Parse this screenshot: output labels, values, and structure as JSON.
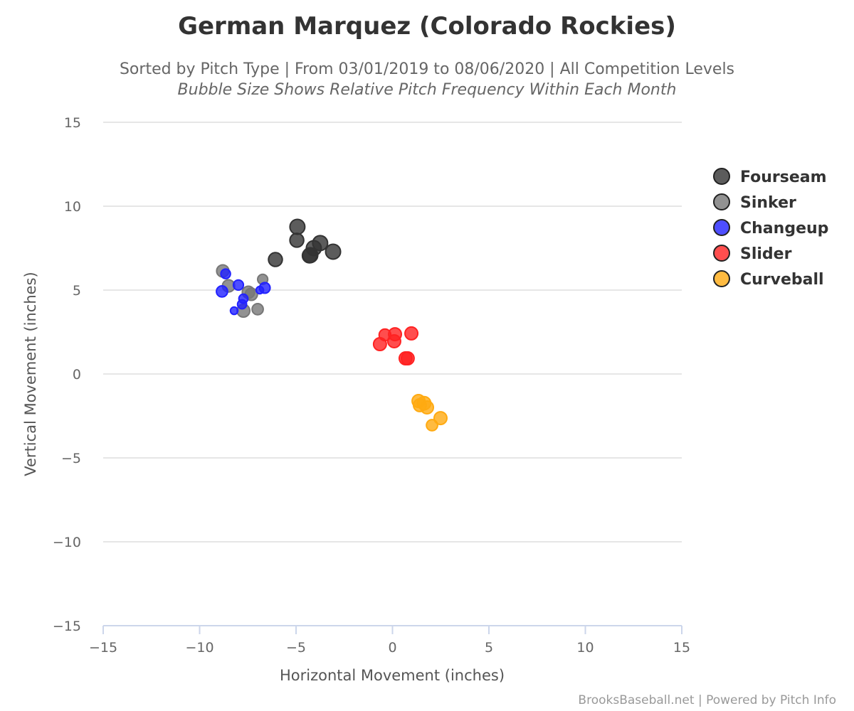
{
  "chart_data": {
    "type": "scatter",
    "title": "German Marquez (Colorado Rockies)",
    "subtitle": "Sorted by Pitch Type | From 03/01/2019 to 08/06/2020 | All Competition Levels",
    "subtitle2": "Bubble Size Shows Relative Pitch Frequency Within Each Month",
    "xlabel": "Horizontal Movement (inches)",
    "ylabel": "Vertical Movement (inches)",
    "xlim": [
      -15,
      15
    ],
    "ylim": [
      -15,
      15
    ],
    "xticks": [
      "−15",
      "−10",
      "−5",
      "0",
      "5",
      "10",
      "15"
    ],
    "yticks": [
      "15",
      "10",
      "5",
      "0",
      "−5",
      "−10",
      "−15"
    ],
    "grid": true,
    "legend_position": "right",
    "credits": "BrooksBaseball.net | Powered by Pitch Info",
    "series": [
      {
        "name": "Fourseam",
        "color": "#333333",
        "points": [
          {
            "x": -4.93,
            "y": 8.77,
            "size": 1.0
          },
          {
            "x": -4.96,
            "y": 7.97,
            "size": 0.9
          },
          {
            "x": -6.07,
            "y": 6.82,
            "size": 0.9
          },
          {
            "x": -3.75,
            "y": 7.8,
            "size": 1.0
          },
          {
            "x": -4.08,
            "y": 7.5,
            "size": 1.0
          },
          {
            "x": -4.26,
            "y": 7.08,
            "size": 1.0
          },
          {
            "x": -4.3,
            "y": 7.05,
            "size": 0.95
          },
          {
            "x": -3.08,
            "y": 7.29,
            "size": 1.0
          }
        ]
      },
      {
        "name": "Sinker",
        "color": "#777777",
        "points": [
          {
            "x": -8.8,
            "y": 6.14,
            "size": 0.75
          },
          {
            "x": -8.5,
            "y": 5.25,
            "size": 0.75
          },
          {
            "x": -6.73,
            "y": 5.64,
            "size": 0.55
          },
          {
            "x": -7.47,
            "y": 4.87,
            "size": 0.75
          },
          {
            "x": -7.32,
            "y": 4.75,
            "size": 0.75
          },
          {
            "x": -7.73,
            "y": 3.77,
            "size": 0.8
          },
          {
            "x": -6.99,
            "y": 3.86,
            "size": 0.65
          }
        ]
      },
      {
        "name": "Changeup",
        "color": "#2222ff",
        "points": [
          {
            "x": -8.65,
            "y": 5.97,
            "size": 0.5
          },
          {
            "x": -8.84,
            "y": 4.92,
            "size": 0.65
          },
          {
            "x": -7.99,
            "y": 5.3,
            "size": 0.55
          },
          {
            "x": -6.62,
            "y": 5.13,
            "size": 0.6
          },
          {
            "x": -6.88,
            "y": 5.0,
            "size": 0.3
          },
          {
            "x": -7.73,
            "y": 4.49,
            "size": 0.45
          },
          {
            "x": -7.8,
            "y": 4.15,
            "size": 0.45
          },
          {
            "x": -8.21,
            "y": 3.77,
            "size": 0.3
          }
        ]
      },
      {
        "name": "Slider",
        "color": "#ff2222",
        "points": [
          {
            "x": -0.39,
            "y": 2.33,
            "size": 0.7
          },
          {
            "x": -0.65,
            "y": 1.78,
            "size": 0.8
          },
          {
            "x": 0.13,
            "y": 2.37,
            "size": 0.8
          },
          {
            "x": 0.09,
            "y": 1.95,
            "size": 0.8
          },
          {
            "x": 0.98,
            "y": 2.42,
            "size": 0.8
          },
          {
            "x": 0.68,
            "y": 0.93,
            "size": 0.8
          },
          {
            "x": 0.79,
            "y": 0.93,
            "size": 0.8
          }
        ]
      },
      {
        "name": "Curveball",
        "color": "#ffaa11",
        "points": [
          {
            "x": 1.35,
            "y": -1.61,
            "size": 0.8
          },
          {
            "x": 1.42,
            "y": -1.86,
            "size": 0.8
          },
          {
            "x": 1.64,
            "y": -1.74,
            "size": 0.85
          },
          {
            "x": 1.79,
            "y": -1.99,
            "size": 0.8
          },
          {
            "x": 2.49,
            "y": -2.63,
            "size": 0.8
          },
          {
            "x": 2.05,
            "y": -3.05,
            "size": 0.65
          }
        ]
      }
    ]
  }
}
